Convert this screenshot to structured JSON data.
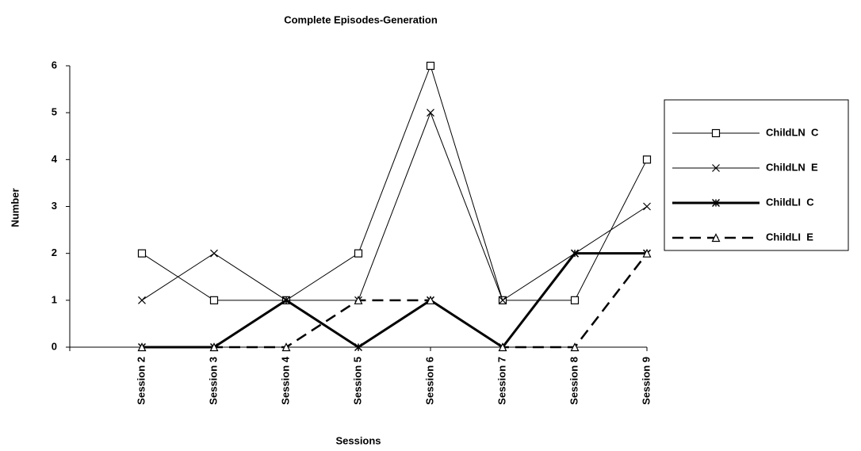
{
  "chart_data": {
    "type": "line",
    "title": "Complete Episodes-Generation",
    "x_label": "Sessions",
    "y_label": "Number",
    "categories": [
      null,
      "Session 2",
      "Session 3",
      "Session 4",
      "Session 5",
      "Session 6",
      "Session 7",
      "Session 8",
      "Session 9"
    ],
    "ylim": [
      0,
      6
    ],
    "yticks": [
      0,
      1,
      2,
      3,
      4,
      5,
      6
    ],
    "legend": "right",
    "series": [
      {
        "name": "ChildLN  C",
        "color": "#000000",
        "marker": "square",
        "line_style": "solid",
        "line_width": 1,
        "values": [
          null,
          2,
          1,
          1,
          2,
          6,
          1,
          1,
          4
        ]
      },
      {
        "name": "ChildLN  E",
        "color": "#000000",
        "marker": "x",
        "line_style": "solid",
        "line_width": 1,
        "values": [
          null,
          1,
          2,
          1,
          1,
          5,
          1,
          2,
          3
        ]
      },
      {
        "name": "ChildLI  C",
        "color": "#000000",
        "marker": "star",
        "line_style": "solid",
        "line_width": 3,
        "values": [
          null,
          0,
          0,
          1,
          0,
          1,
          0,
          2,
          2
        ]
      },
      {
        "name": "ChildLI  E",
        "color": "#000000",
        "marker": "triangle",
        "line_style": "dashed",
        "line_width": 2.5,
        "values": [
          null,
          0,
          0,
          0,
          1,
          1,
          0,
          0,
          2
        ]
      }
    ]
  }
}
